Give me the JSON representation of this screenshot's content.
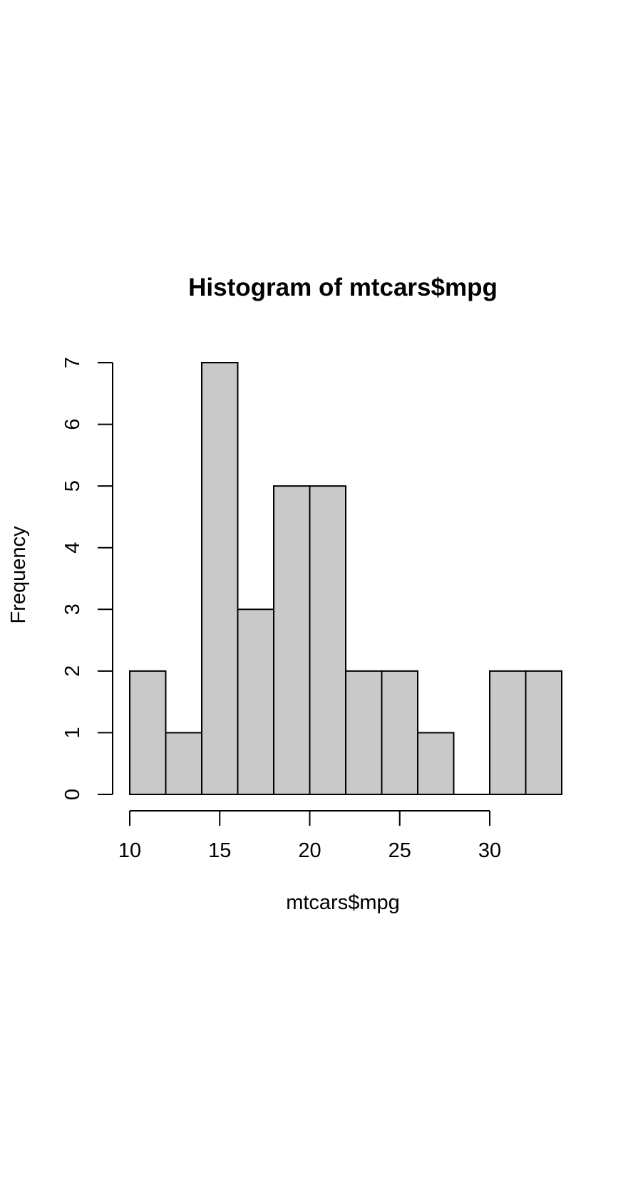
{
  "chart_data": {
    "type": "bar",
    "title": "Histogram of mtcars$mpg",
    "xlabel": "mtcars$mpg",
    "ylabel": "Frequency",
    "bins": [
      {
        "from": 10,
        "to": 12,
        "count": 2
      },
      {
        "from": 12,
        "to": 14,
        "count": 1
      },
      {
        "from": 14,
        "to": 16,
        "count": 7
      },
      {
        "from": 16,
        "to": 18,
        "count": 3
      },
      {
        "from": 18,
        "to": 20,
        "count": 5
      },
      {
        "from": 20,
        "to": 22,
        "count": 5
      },
      {
        "from": 22,
        "to": 24,
        "count": 2
      },
      {
        "from": 24,
        "to": 26,
        "count": 2
      },
      {
        "from": 26,
        "to": 28,
        "count": 1
      },
      {
        "from": 28,
        "to": 30,
        "count": 0
      },
      {
        "from": 30,
        "to": 32,
        "count": 2
      },
      {
        "from": 32,
        "to": 34,
        "count": 2
      }
    ],
    "xlim": [
      10,
      34
    ],
    "ylim": [
      0,
      7
    ],
    "x_ticks": [
      10,
      15,
      20,
      25,
      30
    ],
    "y_ticks": [
      0,
      1,
      2,
      3,
      4,
      5,
      6,
      7
    ],
    "bar_fill": "#c9c9c9",
    "bar_outline": "#000000",
    "grid": false,
    "legend": "none"
  }
}
